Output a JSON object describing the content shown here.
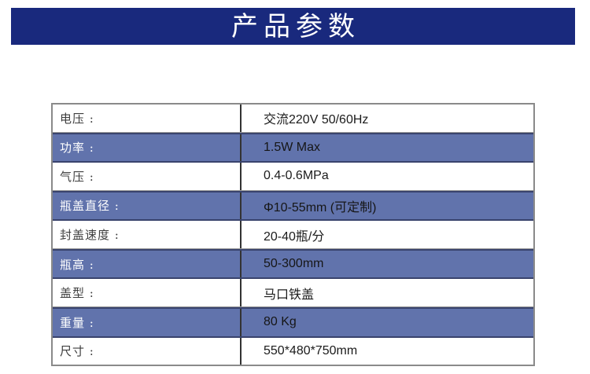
{
  "title_banner": {
    "text": "产品参数"
  },
  "colors": {
    "banner_bg": "#19297d",
    "highlight_row_bg": "#6173ac",
    "highlight_row_border": "#39436d",
    "table_outer_border": "#8a8a8a",
    "column_divider": "#333333",
    "row_divider": "#9a9a9a"
  },
  "spec_table": {
    "rows": [
      {
        "label": "电压 :",
        "value": "交流220V 50/60Hz",
        "highlight": false
      },
      {
        "label": "功率 :",
        "value": "1.5W Max",
        "highlight": true
      },
      {
        "label": "气压  :",
        "value": "0.4-0.6MPa",
        "highlight": false
      },
      {
        "label": "瓶盖直径  :",
        "value": "Φ10-55mm (可定制)",
        "highlight": true
      },
      {
        "label": "封盖速度 :",
        "value": "20-40瓶/分",
        "highlight": false
      },
      {
        "label": "瓶高 :",
        "value": "50-300mm",
        "highlight": true
      },
      {
        "label": "盖型 :",
        "value": "马口铁盖",
        "highlight": false
      },
      {
        "label": "重量  :",
        "value": "80 Kg",
        "highlight": true
      },
      {
        "label": "尺寸 :",
        "value": "550*480*750mm",
        "highlight": false
      }
    ]
  }
}
